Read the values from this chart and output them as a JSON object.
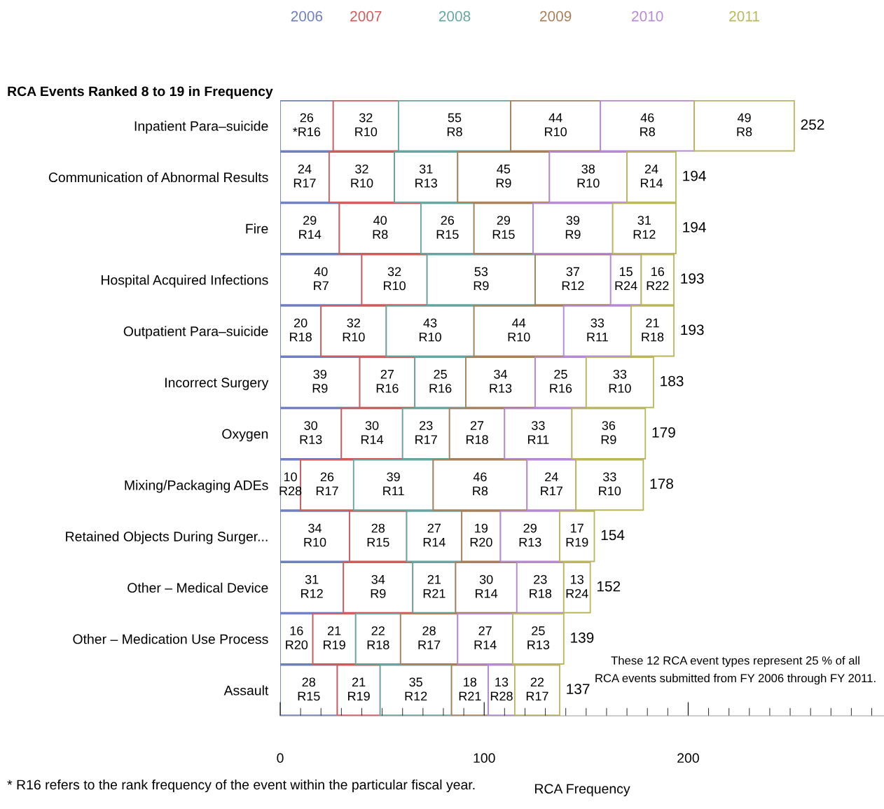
{
  "chart_data": {
    "type": "bar",
    "orientation": "horizontal",
    "stacked": true,
    "title": "RCA Events Ranked 8 to 19 in Frequency",
    "xlabel": "RCA Frequency",
    "categories": [
      "Inpatient Para–suicide",
      "Communication of Abnormal Results",
      "Fire",
      "Hospital Acquired Infections",
      "Outpatient Para–suicide",
      "Incorrect Surgery",
      "Oxygen",
      "Mixing/Packaging ADEs",
      "Retained Objects During Surger...",
      "Other – Medical Device",
      "Other – Medication Use Process",
      "Assault"
    ],
    "series": [
      {
        "name": "2006",
        "color": "#6f7fbf",
        "values": [
          26,
          24,
          29,
          40,
          20,
          39,
          30,
          10,
          34,
          31,
          16,
          28
        ],
        "value_labels": [
          "26\n*R16",
          "24\nR17",
          "29\nR14",
          "40\nR7",
          "20\nR18",
          "39\nR9",
          "30\nR13",
          "10\nR28",
          "34\nR10",
          "31\nR12",
          "16\nR20",
          "28\nR15"
        ]
      },
      {
        "name": "2007",
        "color": "#d05b5b",
        "values": [
          32,
          32,
          40,
          32,
          32,
          27,
          30,
          26,
          28,
          34,
          21,
          21
        ],
        "value_labels": [
          "32\nR10",
          "32\nR10",
          "40\nR8",
          "32\nR10",
          "32\nR10",
          "27\nR16",
          "30\nR14",
          "26\nR17",
          "28\nR15",
          "34\nR9",
          "21\nR19",
          "21\nR19"
        ]
      },
      {
        "name": "2008",
        "color": "#66a5a0",
        "values": [
          55,
          31,
          26,
          53,
          43,
          25,
          23,
          39,
          27,
          21,
          22,
          35
        ],
        "value_labels": [
          "55\nR8",
          "31\nR13",
          "26\nR15",
          "53\nR9",
          "43\nR10",
          "25\nR16",
          "23\nR17",
          "39\nR11",
          "27\nR14",
          "21\nR21",
          "22\nR18",
          "35\nR12"
        ]
      },
      {
        "name": "2009",
        "color": "#a7805a",
        "values": [
          44,
          45,
          29,
          37,
          44,
          34,
          27,
          46,
          19,
          30,
          28,
          18
        ],
        "value_labels": [
          "44\nR10",
          "45\nR9",
          "29\nR15",
          "37\nR12",
          "44\nR10",
          "34\nR13",
          "27\nR18",
          "46\nR8",
          "19\nR20",
          "30\nR14",
          "28\nR17",
          "18\nR21"
        ]
      },
      {
        "name": "2010",
        "color": "#b689d6",
        "values": [
          46,
          38,
          39,
          15,
          33,
          25,
          33,
          24,
          29,
          23,
          27,
          13
        ],
        "value_labels": [
          "46\nR8",
          "38\nR10",
          "39\nR9",
          "15\nR24",
          "33\nR11",
          "25\nR16",
          "33\nR11",
          "24\nR17",
          "29\nR13",
          "23\nR18",
          "27\nR14",
          "13\nR28"
        ]
      },
      {
        "name": "2011",
        "color": "#b9b65c",
        "values": [
          49,
          24,
          31,
          16,
          21,
          33,
          36,
          33,
          17,
          13,
          25,
          22
        ],
        "value_labels": [
          "49\nR8",
          "24\nR14",
          "31\nR12",
          "16\nR22",
          "21\nR18",
          "33\nR10",
          "36\nR9",
          "33\nR10",
          "17\nR19",
          "13\nR24",
          "25\nR13",
          "22\nR17"
        ]
      }
    ],
    "totals": [
      "252",
      "194",
      "194",
      "193",
      "193",
      "183",
      "179",
      "178",
      "154",
      "152",
      "139",
      "137"
    ],
    "xlim": [
      0,
      296
    ],
    "xticks": [
      0,
      100,
      200
    ],
    "legend": false,
    "grid": false,
    "annotations": [
      "These 12 RCA event types represent 25 % of all\nRCA events submitted from FY 2006 through FY 2011.",
      "* R16 refers to the rank frequency of the event within the particular fiscal year."
    ]
  }
}
